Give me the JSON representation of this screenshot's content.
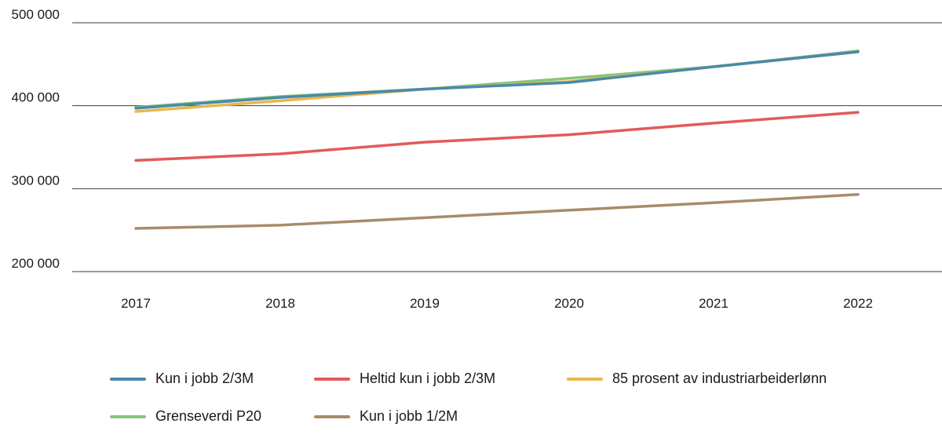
{
  "chart_data": {
    "type": "line",
    "title": "",
    "xlabel": "",
    "ylabel": "",
    "x": [
      "2017",
      "2018",
      "2019",
      "2020",
      "2021",
      "2022"
    ],
    "ylim": [
      200000,
      500000
    ],
    "yticks": [
      {
        "value": 200000,
        "label": "200 000"
      },
      {
        "value": 300000,
        "label": "300 000"
      },
      {
        "value": 400000,
        "label": "400 000"
      },
      {
        "value": 500000,
        "label": "500 000"
      }
    ],
    "grid": true,
    "legend_position": "bottom",
    "series": [
      {
        "name": "Kun i jobb 2/3M",
        "color": "#4a8aa8",
        "values": [
          397000,
          410000,
          420000,
          428000,
          447000,
          465000
        ]
      },
      {
        "name": "Heltid kun i jobb 2/3M",
        "color": "#e35a5a",
        "values": [
          334000,
          342000,
          356000,
          365000,
          379000,
          392000
        ]
      },
      {
        "name": "85 prosent av industriarbeiderlønn",
        "color": "#e8b84a",
        "values": [
          393000,
          406000,
          420000,
          429000,
          447000,
          465000
        ]
      },
      {
        "name": "Grenseverdi P20",
        "color": "#86c67a",
        "values": [
          398000,
          411000,
          420000,
          433000,
          447000,
          466000
        ]
      },
      {
        "name": "Kun i jobb 1/2M",
        "color": "#a88c6a",
        "values": [
          252000,
          256000,
          265000,
          274000,
          283000,
          293000
        ]
      }
    ]
  }
}
